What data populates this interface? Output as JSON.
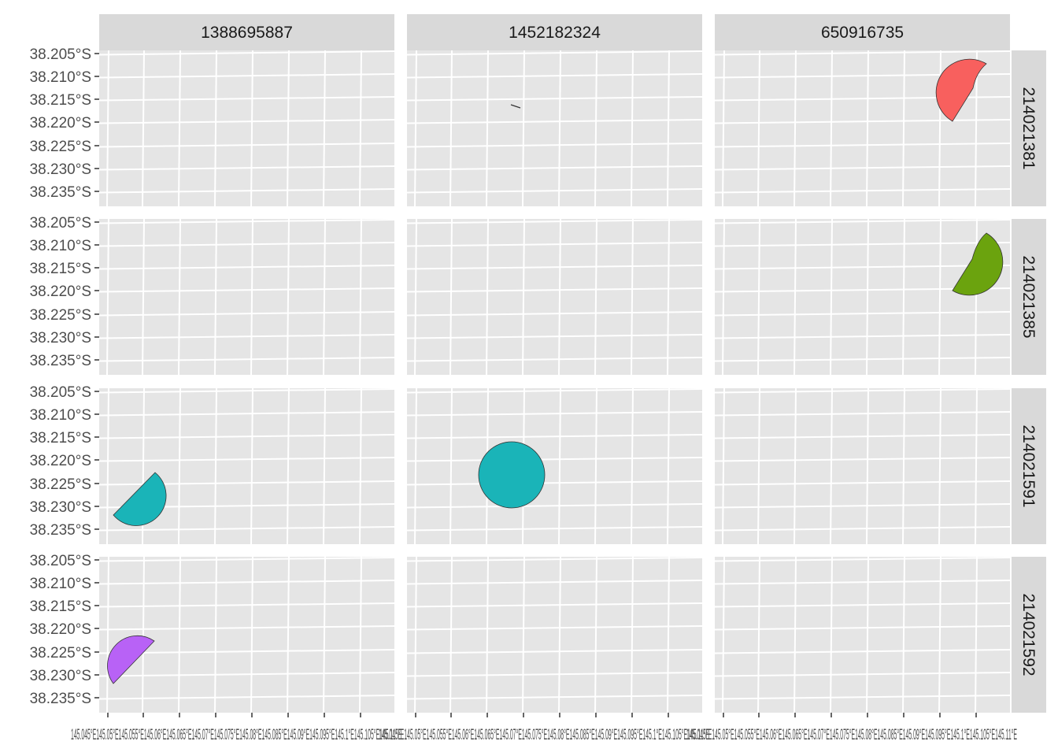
{
  "chart_data": {
    "type": "map-facet",
    "facet_cols": [
      "1388695887",
      "1452182324",
      "650916735"
    ],
    "facet_rows": [
      "214021381",
      "214021385",
      "214021591",
      "214021592"
    ],
    "y_ticks": [
      "38.205°S",
      "38.210°S",
      "38.215°S",
      "38.220°S",
      "38.225°S",
      "38.230°S",
      "38.235°S"
    ],
    "y_tick_values": [
      -38.205,
      -38.21,
      -38.215,
      -38.22,
      -38.225,
      -38.23,
      -38.235
    ],
    "x_tick_text": "145.045°E145.05°E145.055°E145.06°E145.065°E145.07°E145.075°E145.08°E145.085°E145.09°E145.095°E145.1°E145.105°E145.11°E",
    "x_ticks_panel3": "145.045°E145.05°E145.055°E145.06°E145.065°E145.07°E145.075°E145.08°E145.085°E145.09°E145.095°E145.1°E145.105°E145.11°E",
    "grid": true,
    "legend": "none",
    "colors": {
      "panel_bg": "#e5e5e5",
      "strip_bg": "#d9d9d9",
      "grid": "#ffffff",
      "214021381": "#f8605e",
      "214021385": "#6ba30e",
      "214021591": "#1ab4b8",
      "214021592": "#b862f6",
      "outline": "#333333"
    },
    "shapes": [
      {
        "row": "214021381",
        "col": "650916735",
        "kind": "partial-circle",
        "fill_key": "214021381"
      },
      {
        "row": "214021381",
        "col": "1452182324",
        "kind": "line-segment",
        "fill_key": "outline"
      },
      {
        "row": "214021385",
        "col": "650916735",
        "kind": "partial-circle",
        "fill_key": "214021385"
      },
      {
        "row": "214021591",
        "col": "1388695887",
        "kind": "partial-circle",
        "fill_key": "214021591"
      },
      {
        "row": "214021591",
        "col": "1452182324",
        "kind": "circle",
        "fill_key": "214021591"
      },
      {
        "row": "214021592",
        "col": "1388695887",
        "kind": "half-circle",
        "fill_key": "214021592"
      }
    ]
  }
}
